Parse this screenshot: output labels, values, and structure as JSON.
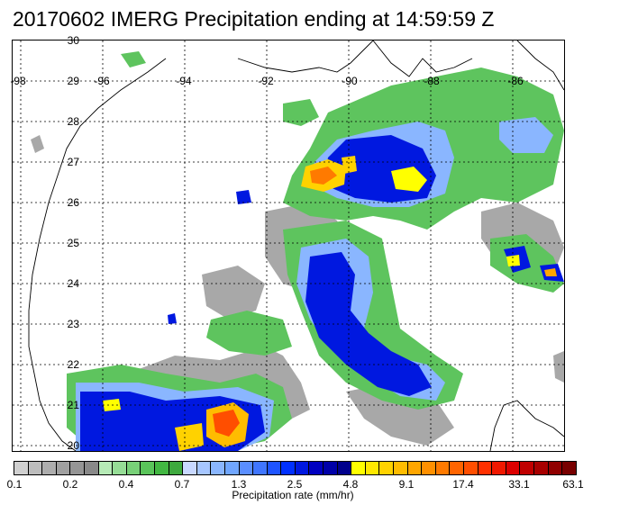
{
  "title": "20170602 IMERG Precipitation ending at 14:59:59 Z",
  "map": {
    "lat_labels": [
      "30",
      "29",
      "28",
      "27",
      "26",
      "25",
      "24",
      "23",
      "22",
      "21",
      "20"
    ],
    "lon_labels": [
      "-98",
      "-96",
      "-94",
      "-92",
      "-90",
      "-88",
      "-86"
    ],
    "lon_range": [
      -98.2,
      -84.8
    ],
    "lat_range": [
      19.9,
      30.0
    ]
  },
  "colorbar": {
    "label": "Precipitation rate (mm/hr)",
    "tick_labels": [
      "0.1",
      "0.2",
      "0.4",
      "0.7",
      "1.3",
      "2.5",
      "4.8",
      "9.1",
      "17.4",
      "33.1",
      "63.1"
    ],
    "colors": [
      "#d0d0d0",
      "#bdbdbd",
      "#adadad",
      "#a0a0a0",
      "#959595",
      "#898989",
      "#b6eab6",
      "#96dd96",
      "#78d078",
      "#5ac45a",
      "#42b742",
      "#3ea93e",
      "#c8d8ff",
      "#a6c6ff",
      "#8ab6ff",
      "#70a6ff",
      "#5a8eff",
      "#4076ff",
      "#1e54ff",
      "#0030ff",
      "#0018e0",
      "#0000c0",
      "#0000a8",
      "#00008c",
      "#ffff00",
      "#ffe800",
      "#ffd200",
      "#ffbc00",
      "#ffa600",
      "#ff9000",
      "#ff7a00",
      "#ff6400",
      "#ff4e00",
      "#ff3000",
      "#f01800",
      "#dc0000",
      "#c00000",
      "#a80000",
      "#900000",
      "#780000"
    ]
  }
}
